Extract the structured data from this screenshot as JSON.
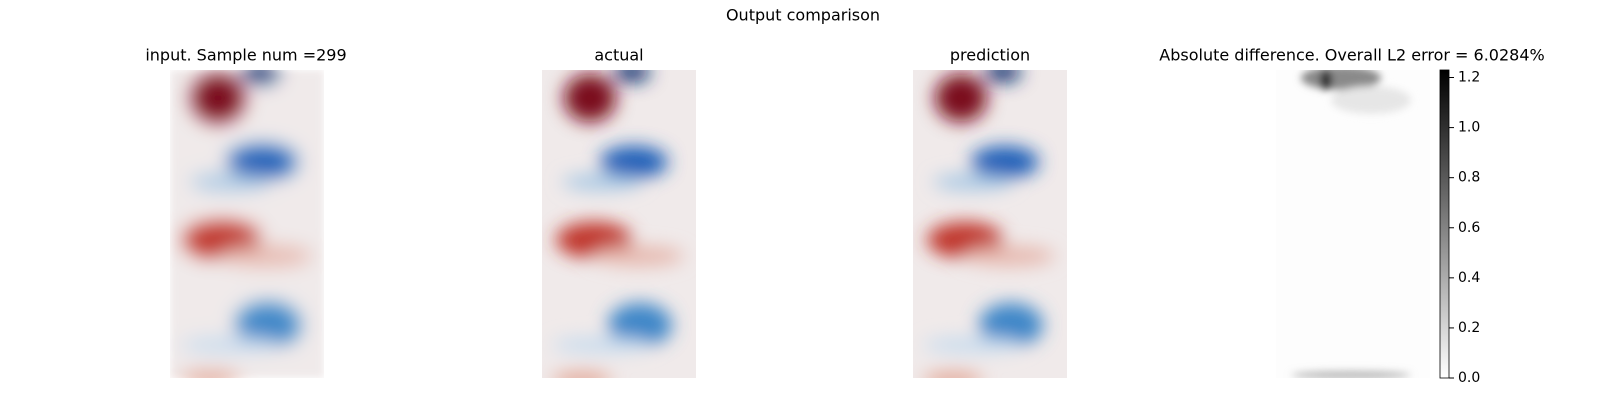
{
  "chart_data": {
    "type": "heatmap",
    "title": "Output comparison",
    "panels": [
      {
        "title": "input. Sample num =299"
      },
      {
        "title": "actual"
      },
      {
        "title": "prediction"
      },
      {
        "title": "Absolute difference. Overall L2 error = 6.0284%"
      }
    ],
    "clim": [
      0,
      1.23
    ],
    "cticks": [
      {
        "value": 0,
        "label": "0.0"
      },
      {
        "value": 0.2,
        "label": "0.2"
      },
      {
        "value": 0.4,
        "label": "0.4"
      },
      {
        "value": 0.6,
        "label": "0.6"
      },
      {
        "value": 0.8,
        "label": "0.8"
      },
      {
        "value": 1.0,
        "label": "1.0"
      },
      {
        "value": 1.2,
        "label": "1.2"
      }
    ]
  }
}
